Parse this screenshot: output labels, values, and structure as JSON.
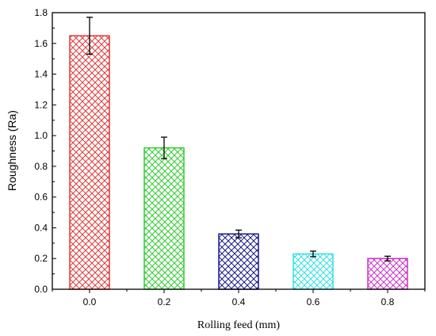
{
  "chart_data": {
    "type": "bar",
    "title": "",
    "xlabel": "Rolling feed (mm)",
    "ylabel": "Roughness (Ra)",
    "categories": [
      "0.0",
      "0.2",
      "0.4",
      "0.6",
      "0.8"
    ],
    "values": [
      1.65,
      0.92,
      0.36,
      0.23,
      0.2
    ],
    "errors": [
      0.12,
      0.07,
      0.025,
      0.018,
      0.015
    ],
    "colors": [
      "#e03c3c",
      "#33cc33",
      "#1a1a8c",
      "#33e0e0",
      "#cc33cc"
    ],
    "fill_pattern": "crosshatch",
    "ylim": [
      0.0,
      1.8
    ],
    "yticks": [
      "0.0",
      "0.2",
      "0.4",
      "0.6",
      "0.8",
      "1.0",
      "1.2",
      "1.4",
      "1.6",
      "1.8"
    ],
    "grid": false,
    "legend": "none"
  }
}
